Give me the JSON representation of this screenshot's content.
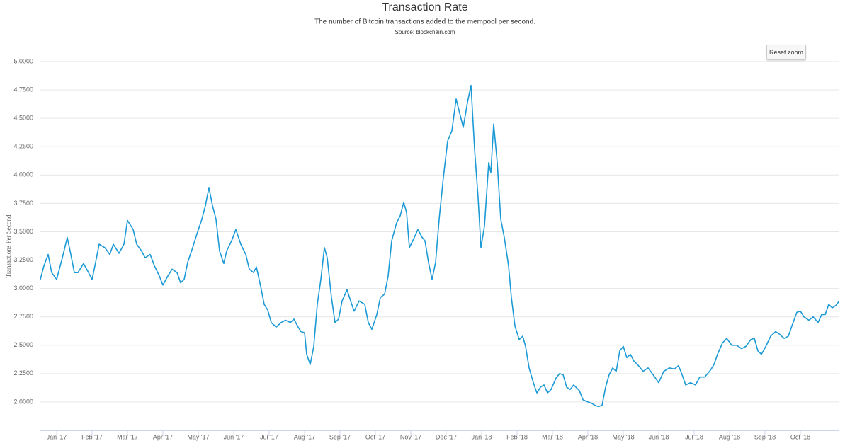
{
  "chart_data": {
    "type": "line",
    "title": "Transaction Rate",
    "subtitle": "The number of Bitcoin transactions added to the mempool per second.",
    "source": "Source: blockchain.com",
    "ylabel": "Transactions Per Second",
    "button": "Reset zoom",
    "x": [
      -0.46,
      -0.36,
      -0.24,
      -0.14,
      0,
      0.16,
      0.3,
      0.4,
      0.5,
      0.6,
      0.76,
      0.9,
      1.0,
      1.1,
      1.2,
      1.36,
      1.5,
      1.6,
      1.76,
      1.9,
      2.0,
      2.16,
      2.26,
      2.4,
      2.5,
      2.64,
      2.76,
      2.9,
      3.0,
      3.14,
      3.26,
      3.4,
      3.5,
      3.6,
      3.7,
      3.84,
      3.96,
      4.1,
      4.2,
      4.3,
      4.4,
      4.5,
      4.6,
      4.72,
      4.8,
      4.94,
      5.06,
      5.2,
      5.34,
      5.44,
      5.56,
      5.64,
      5.76,
      5.86,
      5.96,
      6.06,
      6.2,
      6.34,
      6.46,
      6.6,
      6.7,
      6.8,
      6.9,
      7.0,
      7.06,
      7.16,
      7.26,
      7.36,
      7.46,
      7.56,
      7.64,
      7.76,
      7.86,
      7.96,
      8.06,
      8.2,
      8.3,
      8.4,
      8.54,
      8.7,
      8.8,
      8.9,
      9.04,
      9.14,
      9.26,
      9.36,
      9.46,
      9.6,
      9.7,
      9.8,
      9.88,
      9.96,
      10.1,
      10.2,
      10.32,
      10.4,
      10.5,
      10.6,
      10.7,
      10.8,
      10.92,
      11.04,
      11.16,
      11.28,
      11.4,
      11.48,
      11.6,
      11.7,
      11.8,
      11.9,
      11.98,
      12.08,
      12.2,
      12.26,
      12.34,
      12.44,
      12.54,
      12.64,
      12.76,
      12.84,
      12.94,
      13.06,
      13.16,
      13.24,
      13.34,
      13.46,
      13.56,
      13.66,
      13.76,
      13.86,
      13.96,
      14.1,
      14.2,
      14.3,
      14.4,
      14.5,
      14.6,
      14.76,
      14.86,
      15.0,
      15.1,
      15.2,
      15.3,
      15.4,
      15.5,
      15.6,
      15.7,
      15.8,
      15.9,
      16.0,
      16.1,
      16.2,
      16.3,
      16.4,
      16.56,
      16.7,
      16.84,
      17.0,
      17.14,
      17.3,
      17.44,
      17.56,
      17.66,
      17.76,
      17.9,
      18.04,
      18.16,
      18.3,
      18.46,
      18.56,
      18.66,
      18.8,
      18.92,
      19.06,
      19.2,
      19.34,
      19.46,
      19.6,
      19.7,
      19.8,
      19.9,
      20.04,
      20.16,
      20.3,
      20.4,
      20.54,
      20.66,
      20.76,
      20.9,
      21.0,
      21.1,
      21.24,
      21.36,
      21.5,
      21.6,
      21.7,
      21.8,
      21.9,
      22.0,
      22.1
    ],
    "series": [
      {
        "name": "Transaction Rate",
        "color": "#1c9ad6",
        "values": [
          3.08,
          3.2,
          3.3,
          3.14,
          3.08,
          3.27,
          3.45,
          3.3,
          3.14,
          3.14,
          3.22,
          3.14,
          3.08,
          3.23,
          3.39,
          3.36,
          3.3,
          3.39,
          3.31,
          3.39,
          3.6,
          3.52,
          3.39,
          3.33,
          3.27,
          3.3,
          3.2,
          3.11,
          3.03,
          3.11,
          3.17,
          3.14,
          3.05,
          3.08,
          3.23,
          3.36,
          3.48,
          3.61,
          3.73,
          3.89,
          3.73,
          3.61,
          3.33,
          3.22,
          3.33,
          3.42,
          3.52,
          3.39,
          3.3,
          3.17,
          3.14,
          3.19,
          3.02,
          2.86,
          2.81,
          2.7,
          2.66,
          2.7,
          2.72,
          2.7,
          2.73,
          2.67,
          2.62,
          2.61,
          2.42,
          2.33,
          2.49,
          2.86,
          3.08,
          3.36,
          3.27,
          2.92,
          2.7,
          2.73,
          2.89,
          2.99,
          2.89,
          2.8,
          2.89,
          2.86,
          2.7,
          2.64,
          2.77,
          2.92,
          2.95,
          3.11,
          3.42,
          3.58,
          3.64,
          3.76,
          3.67,
          3.36,
          3.45,
          3.52,
          3.45,
          3.42,
          3.23,
          3.08,
          3.23,
          3.61,
          3.98,
          4.3,
          4.39,
          4.67,
          4.52,
          4.42,
          4.64,
          4.79,
          4.23,
          3.8,
          3.36,
          3.55,
          4.11,
          4.02,
          4.45,
          4.11,
          3.61,
          3.45,
          3.2,
          2.92,
          2.67,
          2.55,
          2.58,
          2.49,
          2.3,
          2.17,
          2.08,
          2.13,
          2.15,
          2.08,
          2.11,
          2.21,
          2.25,
          2.24,
          2.13,
          2.11,
          2.15,
          2.1,
          2.02,
          2.0,
          1.99,
          1.97,
          1.96,
          1.97,
          2.13,
          2.24,
          2.3,
          2.27,
          2.45,
          2.49,
          2.39,
          2.42,
          2.36,
          2.33,
          2.27,
          2.3,
          2.24,
          2.17,
          2.27,
          2.3,
          2.29,
          2.32,
          2.24,
          2.15,
          2.17,
          2.15,
          2.22,
          2.22,
          2.28,
          2.33,
          2.42,
          2.52,
          2.56,
          2.5,
          2.5,
          2.47,
          2.49,
          2.55,
          2.56,
          2.45,
          2.42,
          2.5,
          2.58,
          2.62,
          2.6,
          2.56,
          2.58,
          2.67,
          2.79,
          2.8,
          2.75,
          2.72,
          2.75,
          2.7,
          2.77,
          2.77,
          2.86,
          2.83,
          2.85,
          2.89
        ]
      }
    ],
    "xlim": [
      -0.46,
      22.1
    ],
    "xticks": [
      {
        "value": 0,
        "label": "Jan '17"
      },
      {
        "value": 1,
        "label": "Feb '17"
      },
      {
        "value": 2,
        "label": "Mar '17"
      },
      {
        "value": 3,
        "label": "Apr '17"
      },
      {
        "value": 4,
        "label": "May '17"
      },
      {
        "value": 5,
        "label": "Jun '17"
      },
      {
        "value": 6,
        "label": "Jul '17"
      },
      {
        "value": 7,
        "label": "Aug '17"
      },
      {
        "value": 8,
        "label": "Sep '17"
      },
      {
        "value": 9,
        "label": "Oct '17"
      },
      {
        "value": 10,
        "label": "Nov '17"
      },
      {
        "value": 11,
        "label": "Dec '17"
      },
      {
        "value": 12,
        "label": "Jan '18"
      },
      {
        "value": 13,
        "label": "Feb '18"
      },
      {
        "value": 14,
        "label": "Mar '18"
      },
      {
        "value": 15,
        "label": "Apr '18"
      },
      {
        "value": 16,
        "label": "May '18"
      },
      {
        "value": 17,
        "label": "Jun '18"
      },
      {
        "value": 18,
        "label": "Jul '18"
      },
      {
        "value": 19,
        "label": "Aug '18"
      },
      {
        "value": 20,
        "label": "Sep '18"
      },
      {
        "value": 21,
        "label": "Oct '18"
      }
    ],
    "ylim": [
      1.75,
      5.0
    ],
    "yticks": [
      {
        "value": 2,
        "label": "2.0000"
      },
      {
        "value": 2.25,
        "label": "2.2500"
      },
      {
        "value": 2.5,
        "label": "2.5000"
      },
      {
        "value": 2.75,
        "label": "2.7500"
      },
      {
        "value": 3,
        "label": "3.0000"
      },
      {
        "value": 3.25,
        "label": "3.2500"
      },
      {
        "value": 3.5,
        "label": "3.5000"
      },
      {
        "value": 3.75,
        "label": "3.7500"
      },
      {
        "value": 4,
        "label": "4.0000"
      },
      {
        "value": 4.25,
        "label": "4.2500"
      },
      {
        "value": 4.5,
        "label": "4.5000"
      },
      {
        "value": 4.75,
        "label": "4.7500"
      },
      {
        "value": 5,
        "label": "5.0000"
      }
    ],
    "grid": true
  }
}
